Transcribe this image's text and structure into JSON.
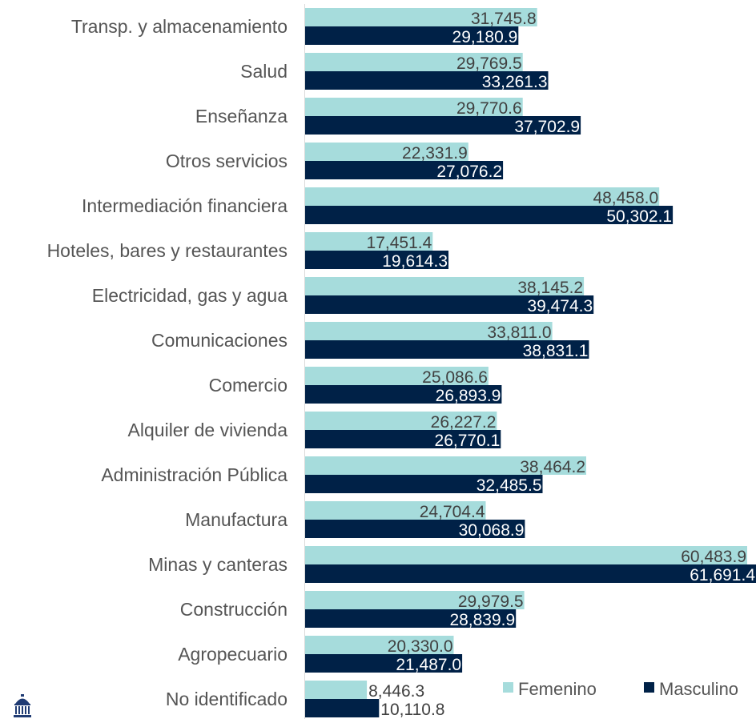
{
  "chart_data": {
    "type": "bar",
    "orientation": "horizontal",
    "categories": [
      "Transp. y almacenamiento",
      "Salud",
      "Enseñanza",
      "Otros servicios",
      "Intermediación financiera",
      "Hoteles, bares y restaurantes",
      "Electricidad, gas y agua",
      "Comunicaciones",
      "Comercio",
      "Alquiler de vivienda",
      "Administración Pública",
      "Manufactura",
      "Minas y canteras",
      "Construcción",
      "Agropecuario",
      "No identificado"
    ],
    "series": [
      {
        "name": "Femenino",
        "color": "#a6dcdc",
        "values": [
          31745.8,
          29769.5,
          29770.6,
          22331.9,
          48458.0,
          17451.4,
          38145.2,
          33811.0,
          25086.6,
          26227.2,
          38464.2,
          24704.4,
          60483.9,
          29979.5,
          20330.0,
          8446.3
        ],
        "labels": [
          "31,745.8",
          "29,769.5",
          "29,770.6",
          "22,331.9",
          "48,458.0",
          "17,451.4",
          "38,145.2",
          "33,811.0",
          "25,086.6",
          "26,227.2",
          "38,464.2",
          "24,704.4",
          "60,483.9",
          "29,979.5",
          "20,330.0",
          "8,446.3"
        ]
      },
      {
        "name": "Masculino",
        "color": "#002147",
        "values": [
          29180.9,
          33261.3,
          37702.9,
          27076.2,
          50302.1,
          19614.3,
          39474.3,
          38831.1,
          26893.9,
          26770.1,
          32485.5,
          30068.9,
          61691.4,
          28839.9,
          21487.0,
          10110.8
        ],
        "labels": [
          "29,180.9",
          "33,261.3",
          "37,702.9",
          "27,076.2",
          "50,302.1",
          "19,614.3",
          "39,474.3",
          "38,831.1",
          "26,893.9",
          "26,770.1",
          "32,485.5",
          "30,068.9",
          "61,691.4",
          "28,839.9",
          "21,487.0",
          "10,110.8"
        ]
      }
    ],
    "xlim": [
      0,
      61691.4
    ],
    "legend": "bottom-right",
    "grid": false,
    "logo_icon": "building-dome-icon"
  }
}
